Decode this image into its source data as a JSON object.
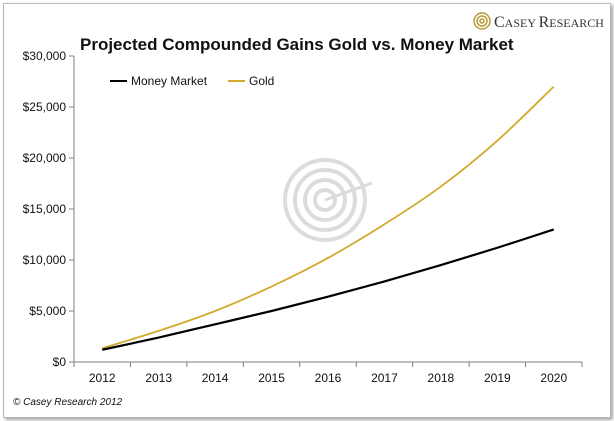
{
  "brand": {
    "name_first": "C",
    "name_rest1": "ASEY ",
    "name_first2": "R",
    "name_rest2": "ESEARCH"
  },
  "copyright": "© Casey Research 2012",
  "colors": {
    "money_market": "#000000",
    "gold": "#d4a930",
    "axis": "#7f7f7f",
    "watermark": "#d9d9d9"
  },
  "chart_data": {
    "type": "line",
    "title": "Projected Compounded Gains Gold vs. Money Market",
    "xlabel": "",
    "ylabel": "",
    "categories": [
      "2012",
      "2013",
      "2014",
      "2015",
      "2016",
      "2017",
      "2018",
      "2019",
      "2020"
    ],
    "ylim": [
      0,
      30000
    ],
    "yticks": [
      0,
      5000,
      10000,
      15000,
      20000,
      25000,
      30000
    ],
    "ytick_labels": [
      "$0",
      "$5,000",
      "$10,000",
      "$15,000",
      "$20,000",
      "$25,000",
      "$30,000"
    ],
    "legend_position": "top-left",
    "grid": false,
    "series": [
      {
        "name": "Money Market",
        "color": "#000000",
        "values": [
          1200,
          2400,
          3700,
          5000,
          6400,
          7900,
          9500,
          11200,
          13000
        ]
      },
      {
        "name": "Gold",
        "color": "#d4a930",
        "values": [
          1350,
          3050,
          5000,
          7400,
          10200,
          13500,
          17200,
          21700,
          27000
        ]
      }
    ]
  }
}
